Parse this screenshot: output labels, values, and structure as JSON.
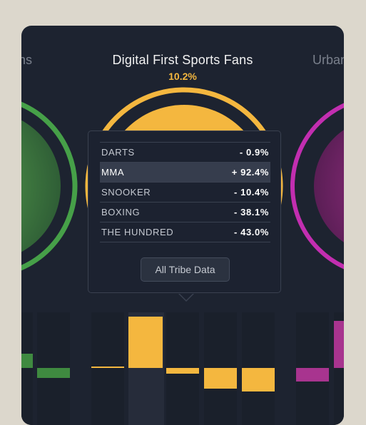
{
  "header": {
    "title": "Digital First Sports Fans",
    "percent": "10.2%",
    "left_title_fragment": "ns",
    "right_title_fragment": "Urban"
  },
  "tooltip": {
    "rows": [
      {
        "label": "DARTS",
        "value": "- 0.9%"
      },
      {
        "label": "MMA",
        "value": "+ 92.4%"
      },
      {
        "label": "SNOOKER",
        "value": "- 10.4%"
      },
      {
        "label": "BOXING",
        "value": "- 38.1%"
      },
      {
        "label": "THE HUNDRED",
        "value": "- 43.0%"
      }
    ],
    "button_label": "All Tribe Data"
  },
  "colors": {
    "accent_yellow": "#f4b73f",
    "green": "#4caf50",
    "magenta": "#c03aa6",
    "card_bg": "#1d2330"
  }
}
